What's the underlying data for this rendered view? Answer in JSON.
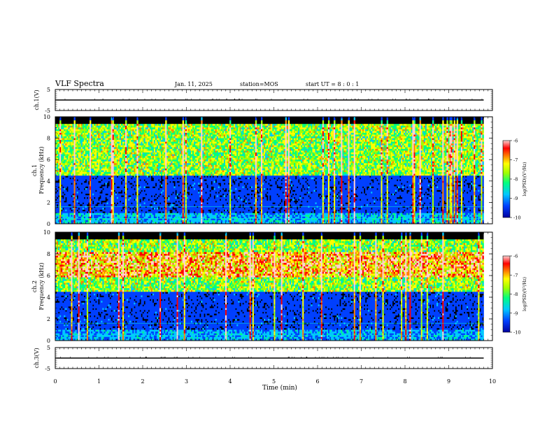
{
  "header": {
    "title": "VLF Spectra",
    "date": "Jan. 11, 2025",
    "station": "station=MOS",
    "start_ut": "start UT =  8 : 0 : 1"
  },
  "colors": {
    "background": "#000000",
    "colormap": [
      "#0000a0",
      "#0040ff",
      "#00c8ff",
      "#00ff80",
      "#a0ff00",
      "#ffff00",
      "#ff8000",
      "#ff0000",
      "#ffd0d0"
    ]
  },
  "chart_data": [
    {
      "id": "ch1v",
      "type": "line",
      "ylabel": "ch.1(V)",
      "ylim": [
        -5,
        5
      ],
      "yticks": [
        "5",
        "-5"
      ],
      "x": [
        0,
        9.8
      ],
      "y": [
        0,
        0
      ]
    },
    {
      "id": "ch1",
      "type": "heatmap",
      "ylabel": "ch.1\nFrequency (kHz)",
      "ylim": [
        0,
        10
      ],
      "yticks": [
        "0",
        "2",
        "4",
        "6",
        "8",
        "10"
      ],
      "xlim": [
        0,
        9.8
      ],
      "bands": [
        {
          "f_low": 4.5,
          "f_high": 9.3,
          "level": 0.55
        },
        {
          "f_low": 1.0,
          "f_high": 4.5,
          "level": 0.18
        },
        {
          "f_low": 0.0,
          "f_high": 1.0,
          "level": 0.3
        }
      ],
      "colorbar": {
        "label": "log(PSD)(V²/Hz)",
        "ticks": [
          "-6",
          "-7",
          "-8",
          "-9",
          "-10"
        ],
        "range": [
          -10,
          -6
        ]
      }
    },
    {
      "id": "ch2",
      "type": "heatmap",
      "ylabel": "ch.2\nFrequency (kHz)",
      "ylim": [
        0,
        10
      ],
      "yticks": [
        "0",
        "2",
        "4",
        "6",
        "8",
        "10"
      ],
      "xlim": [
        0,
        9.8
      ],
      "bands": [
        {
          "f_low": 5.8,
          "f_high": 8.2,
          "level": 0.8
        },
        {
          "f_low": 4.5,
          "f_high": 9.3,
          "level": 0.55
        },
        {
          "f_low": 1.0,
          "f_high": 4.5,
          "level": 0.18
        },
        {
          "f_low": 0.0,
          "f_high": 1.0,
          "level": 0.28
        }
      ],
      "colorbar": {
        "label": "log(PSD)(V²/Hz)",
        "ticks": [
          "-6",
          "-7",
          "-8",
          "-9",
          "-10"
        ],
        "range": [
          -10,
          -6
        ]
      }
    },
    {
      "id": "ch3v",
      "type": "line",
      "ylabel": "ch.3(V)",
      "ylim": [
        -5,
        5
      ],
      "yticks": [
        "5",
        "-5"
      ],
      "x": [
        0,
        9.8
      ],
      "y": [
        0,
        0
      ]
    }
  ],
  "xaxis": {
    "label": "Time (min)",
    "ticks": [
      "0",
      "1",
      "2",
      "3",
      "4",
      "5",
      "6",
      "7",
      "8",
      "9",
      "10"
    ],
    "xlim": [
      0,
      10
    ]
  }
}
